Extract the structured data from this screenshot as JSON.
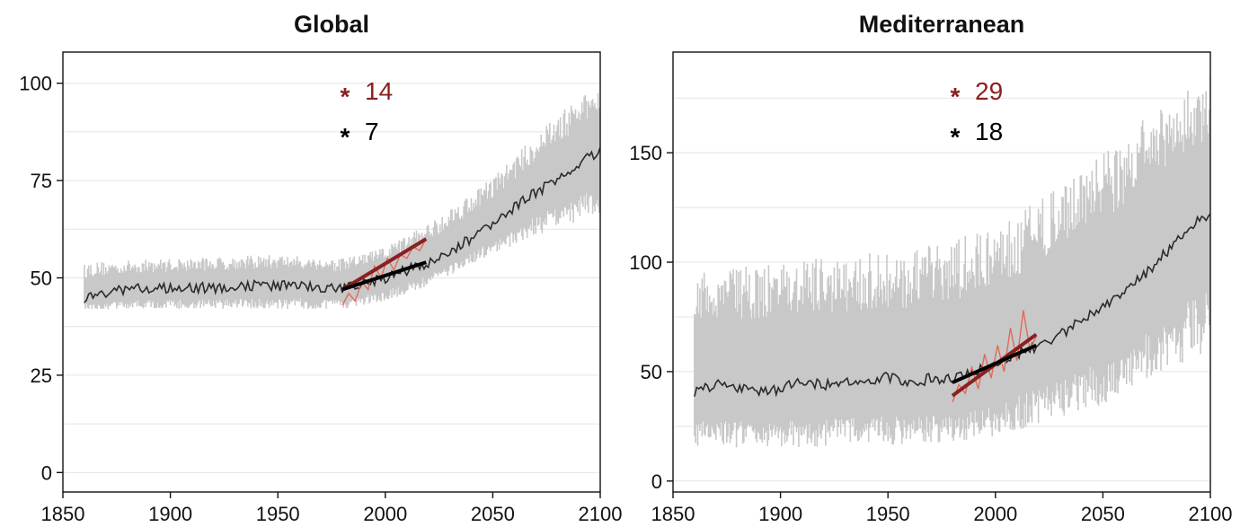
{
  "chart_data": [
    {
      "type": "line",
      "title": "Global",
      "xlabel": "",
      "ylabel": "",
      "xlim": [
        1850,
        2100
      ],
      "ylim": [
        -5,
        108
      ],
      "x_ticks": [
        1850,
        1900,
        1950,
        2000,
        2050,
        2100
      ],
      "x_tick_labels": [
        "1850",
        "1900",
        "1950",
        "2000",
        "2050",
        "2100"
      ],
      "y_ticks": [
        0,
        25,
        50,
        75,
        100
      ],
      "y_tick_labels": [
        "0",
        "25",
        "50",
        "75",
        "100"
      ],
      "grid": "horizontal",
      "colors": {
        "band": "#c8c8c8",
        "mean": "#2b2b2b",
        "observed": "#e06a5a",
        "trend_obs": "#8b2020",
        "trend_model": "#000000"
      },
      "series": [
        {
          "key": "ensemble_range",
          "kind": "band",
          "x": [
            1860,
            1900,
            1950,
            1980,
            2000,
            2020,
            2050,
            2080,
            2100
          ],
          "low": [
            42,
            42,
            42,
            42,
            44,
            48,
            56,
            63,
            66
          ],
          "high": [
            54,
            55,
            56,
            55,
            58,
            64,
            76,
            92,
            100
          ]
        },
        {
          "key": "ensemble_mean",
          "kind": "line",
          "x": [
            1860,
            1880,
            1900,
            1920,
            1940,
            1960,
            1980,
            1990,
            2000,
            2010,
            2020,
            2030,
            2040,
            2050,
            2060,
            2070,
            2080,
            2090,
            2100
          ],
          "y": [
            45,
            47,
            47.5,
            47.5,
            48,
            48,
            47,
            48.5,
            50,
            52,
            54,
            57,
            60,
            64,
            68,
            72,
            75,
            79,
            83
          ]
        },
        {
          "key": "observed",
          "kind": "line",
          "x": [
            1980,
            1983,
            1986,
            1989,
            1992,
            1995,
            1998,
            2001,
            2004,
            2007,
            2010,
            2013,
            2016,
            2019
          ],
          "y": [
            43,
            46,
            44,
            49,
            47,
            53,
            50,
            55,
            52,
            56,
            55,
            58,
            57,
            60
          ]
        },
        {
          "key": "trend_observed",
          "kind": "trend",
          "x": [
            1980,
            2019
          ],
          "y": [
            47,
            60
          ]
        },
        {
          "key": "trend_model",
          "kind": "trend",
          "x": [
            1980,
            2019
          ],
          "y": [
            47,
            54
          ]
        }
      ],
      "annotations": [
        {
          "marker": "*",
          "text": "14",
          "color": "#8b2020"
        },
        {
          "marker": "*",
          "text": "7",
          "color": "#000000"
        }
      ]
    },
    {
      "type": "line",
      "title": "Mediterranean",
      "xlabel": "",
      "ylabel": "",
      "xlim": [
        1850,
        2100
      ],
      "ylim": [
        -5,
        196
      ],
      "x_ticks": [
        1850,
        1900,
        1950,
        2000,
        2050,
        2100
      ],
      "x_tick_labels": [
        "1850",
        "1900",
        "1950",
        "2000",
        "2050",
        "2100"
      ],
      "y_ticks": [
        0,
        50,
        100,
        150
      ],
      "y_tick_labels": [
        "0",
        "50",
        "100",
        "150"
      ],
      "grid": "horizontal",
      "colors": {
        "band": "#c8c8c8",
        "mean": "#2b2b2b",
        "observed": "#e06a5a",
        "trend_obs": "#8b2020",
        "trend_model": "#000000"
      },
      "series": [
        {
          "key": "ensemble_range",
          "kind": "band",
          "x": [
            1860,
            1900,
            1950,
            1980,
            2000,
            2020,
            2050,
            2080,
            2100
          ],
          "low": [
            15,
            15,
            16,
            18,
            20,
            26,
            35,
            50,
            60
          ],
          "high": [
            95,
            100,
            105,
            110,
            118,
            128,
            150,
            175,
            185
          ]
        },
        {
          "key": "ensemble_mean",
          "kind": "line",
          "x": [
            1860,
            1870,
            1880,
            1890,
            1900,
            1910,
            1920,
            1930,
            1940,
            1950,
            1960,
            1970,
            1980,
            1990,
            2000,
            2010,
            2020,
            2030,
            2040,
            2050,
            2060,
            2070,
            2080,
            2090,
            2100
          ],
          "y": [
            41,
            44,
            43,
            41,
            42,
            46,
            44,
            45,
            45,
            48,
            44,
            47,
            46,
            50,
            54,
            58,
            62,
            67,
            73,
            79,
            86,
            95,
            105,
            116,
            122
          ]
        },
        {
          "key": "observed",
          "kind": "line",
          "x": [
            1980,
            1983,
            1986,
            1989,
            1992,
            1995,
            1998,
            2001,
            2004,
            2007,
            2010,
            2013,
            2016,
            2019
          ],
          "y": [
            36,
            44,
            40,
            52,
            42,
            58,
            47,
            62,
            50,
            70,
            55,
            78,
            60,
            66
          ]
        },
        {
          "key": "trend_observed",
          "kind": "trend",
          "x": [
            1980,
            2019
          ],
          "y": [
            39,
            67
          ]
        },
        {
          "key": "trend_model",
          "kind": "trend",
          "x": [
            1980,
            2019
          ],
          "y": [
            45,
            62
          ]
        }
      ],
      "annotations": [
        {
          "marker": "*",
          "text": "29",
          "color": "#8b2020"
        },
        {
          "marker": "*",
          "text": "18",
          "color": "#000000"
        }
      ]
    }
  ]
}
